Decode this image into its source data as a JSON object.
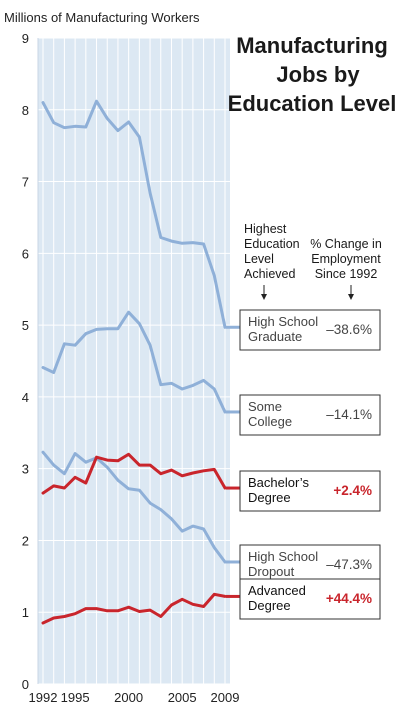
{
  "chart_data": {
    "type": "line",
    "title": [
      "Manufacturing",
      "Jobs by",
      "Education Level"
    ],
    "ylabel": "Millions of Manufacturing Workers",
    "xlabel": "",
    "ylim": [
      0,
      9
    ],
    "xlim": [
      1992,
      2009
    ],
    "yticks": [
      0,
      1,
      2,
      3,
      4,
      5,
      6,
      7,
      8,
      9
    ],
    "xticks": [
      1992,
      1995,
      2000,
      2005,
      2009
    ],
    "grid": true,
    "legend_headers": {
      "level": [
        "Highest",
        "Education",
        "Level",
        "Achieved"
      ],
      "change": [
        "% Change in",
        "Employment",
        "Since 1992"
      ]
    },
    "x": [
      1992,
      1993,
      1994,
      1995,
      1996,
      1997,
      1998,
      1999,
      2000,
      2001,
      2002,
      2003,
      2004,
      2005,
      2006,
      2007,
      2008,
      2009
    ],
    "series": [
      {
        "name": [
          "High School",
          "Graduate"
        ],
        "change": "–38.6%",
        "color": "#8fb0d8",
        "highlight": false,
        "values": [
          8.1,
          7.82,
          7.75,
          7.77,
          7.76,
          8.12,
          7.88,
          7.71,
          7.83,
          7.62,
          6.84,
          6.22,
          6.17,
          6.14,
          6.15,
          6.13,
          5.69,
          4.97
        ]
      },
      {
        "name": [
          "Some",
          "College"
        ],
        "change": "–14.1%",
        "color": "#8fb0d8",
        "highlight": false,
        "values": [
          4.41,
          4.34,
          4.74,
          4.72,
          4.88,
          4.94,
          4.95,
          4.95,
          5.18,
          5.02,
          4.72,
          4.17,
          4.19,
          4.11,
          4.16,
          4.23,
          4.11,
          3.79
        ]
      },
      {
        "name": [
          "Bachelor’s",
          "Degree"
        ],
        "change": "+2.4%",
        "color": "#c9252c",
        "highlight": true,
        "values": [
          2.66,
          2.76,
          2.73,
          2.88,
          2.8,
          3.16,
          3.12,
          3.11,
          3.2,
          3.05,
          3.05,
          2.93,
          2.98,
          2.9,
          2.94,
          2.97,
          2.99,
          2.73
        ]
      },
      {
        "name": [
          "High School",
          "Dropout"
        ],
        "change": "–47.3%",
        "color": "#8fb0d8",
        "highlight": false,
        "values": [
          3.23,
          3.05,
          2.93,
          3.21,
          3.09,
          3.15,
          3.02,
          2.84,
          2.72,
          2.7,
          2.52,
          2.43,
          2.3,
          2.13,
          2.2,
          2.16,
          1.9,
          1.7
        ]
      },
      {
        "name": [
          "Advanced",
          "Degree"
        ],
        "change": "+44.4%",
        "color": "#c9252c",
        "highlight": true,
        "values": [
          0.85,
          0.92,
          0.94,
          0.98,
          1.05,
          1.05,
          1.02,
          1.02,
          1.07,
          1.01,
          1.03,
          0.94,
          1.1,
          1.18,
          1.11,
          1.08,
          1.25,
          1.22
        ]
      }
    ]
  }
}
